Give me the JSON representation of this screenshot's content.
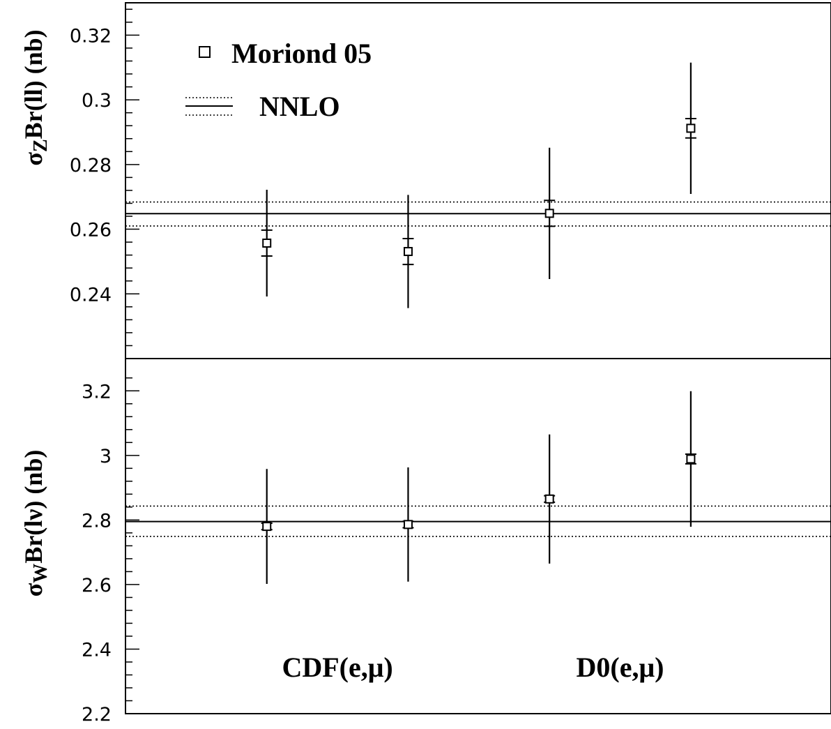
{
  "chart_data": [
    {
      "type": "scatter",
      "ylabel_main": "σ",
      "ylabel_sub": "Z",
      "ylabel_rest": "Br(ll) (nb)",
      "ylim": [
        0.22,
        0.33
      ],
      "yticks": [
        0.24,
        0.26,
        0.28,
        0.3,
        0.32
      ],
      "ytick_labels": [
        "0.24",
        "0.26",
        "0.28",
        "0.3",
        "0.32"
      ],
      "ytick_minor_step": 0.004,
      "points": [
        {
          "x": 1,
          "y": 0.2557,
          "stat_err": 0.004,
          "total_err": 0.0165
        },
        {
          "x": 2,
          "y": 0.2531,
          "stat_err": 0.004,
          "total_err": 0.0175
        },
        {
          "x": 3,
          "y": 0.2649,
          "stat_err": 0.004,
          "total_err": 0.0203
        },
        {
          "x": 4,
          "y": 0.2912,
          "stat_err": 0.003,
          "total_err": 0.0203
        }
      ],
      "nnlo": {
        "central": 0.2648,
        "low": 0.261,
        "high": 0.2684
      }
    },
    {
      "type": "scatter",
      "ylabel_main": "σ",
      "ylabel_sub": "W",
      "ylabel_rest": "Br(lν) (nb)",
      "ylim": [
        2.2,
        3.3
      ],
      "yticks": [
        2.2,
        2.4,
        2.6,
        2.8,
        3.0,
        3.2
      ],
      "ytick_labels": [
        "2.2",
        "2.4",
        "2.6",
        "2.8",
        "3",
        "3.2"
      ],
      "ytick_minor_step": 0.04,
      "points": [
        {
          "x": 1,
          "y": 2.78,
          "stat_err": 0.01,
          "total_err": 0.178
        },
        {
          "x": 2,
          "y": 2.786,
          "stat_err": 0.01,
          "total_err": 0.177
        },
        {
          "x": 3,
          "y": 2.865,
          "stat_err": 0.01,
          "total_err": 0.2
        },
        {
          "x": 4,
          "y": 2.989,
          "stat_err": 0.015,
          "total_err": 0.21
        }
      ],
      "nnlo": {
        "central": 2.795,
        "low": 2.749,
        "high": 2.843
      }
    }
  ],
  "legend": {
    "marker_label": "Moriond 05",
    "band_label": "NNLO"
  },
  "groups": [
    {
      "label": "CDF(e,μ)",
      "x": 1.5
    },
    {
      "label": "D0(e,μ)",
      "x": 3.5
    }
  ],
  "xlim": [
    0,
    4.992
  ]
}
